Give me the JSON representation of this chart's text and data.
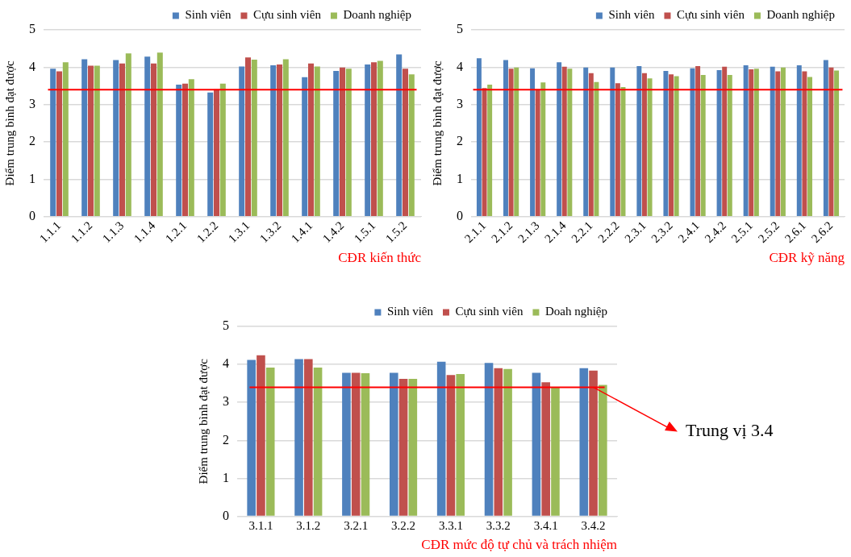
{
  "chart_data": [
    {
      "type": "bar",
      "xlabel": "CĐR kiến thức",
      "ylabel": "Điểm trung bình đạt được",
      "categories": [
        "1.1.1",
        "1.1.2",
        "1.1.3",
        "1.1.4",
        "1.2.1",
        "1.2.2",
        "1.3.1",
        "1.3.2",
        "1.4.1",
        "1.4.2",
        "1.5.1",
        "1.5.2"
      ],
      "series": [
        {
          "name": "Sinh viên",
          "color": "#4f81bd",
          "values": [
            3.96,
            4.21,
            4.19,
            4.28,
            3.53,
            3.32,
            4.02,
            4.05,
            3.73,
            3.9,
            4.07,
            4.34
          ]
        },
        {
          "name": "Cựu sinh viên",
          "color": "#c0504d",
          "values": [
            3.89,
            4.04,
            4.1,
            4.1,
            3.56,
            3.41,
            4.26,
            4.07,
            4.1,
            3.99,
            4.13,
            3.96
          ]
        },
        {
          "name": "Doanh nghiệp",
          "color": "#9bbb59",
          "values": [
            4.13,
            4.04,
            4.37,
            4.39,
            3.68,
            3.56,
            4.2,
            4.21,
            4.02,
            3.96,
            4.17,
            3.81
          ]
        }
      ],
      "ylim": [
        0,
        5
      ],
      "yticks": [
        0,
        1,
        2,
        3,
        4,
        5
      ],
      "grid": "y",
      "legend": "top right",
      "ref_lines": [
        {
          "axis": "y",
          "value": 3.4,
          "color": "#ff0000"
        }
      ]
    },
    {
      "type": "bar",
      "xlabel": "CĐR kỹ năng",
      "ylabel": "Điểm trung bình đạt được",
      "categories": [
        "2.1.1",
        "2.1.2",
        "2.1.3",
        "2.1.4",
        "2.2.1",
        "2.2.2",
        "2.3.1",
        "2.3.2",
        "2.4.1",
        "2.4.2",
        "2.5.1",
        "2.5.2",
        "2.6.1",
        "2.6.2"
      ],
      "series": [
        {
          "name": "Sinh viên",
          "color": "#4f81bd",
          "values": [
            4.24,
            4.19,
            3.97,
            4.13,
            3.99,
            3.99,
            4.03,
            3.9,
            3.97,
            3.92,
            4.05,
            4.01,
            4.05,
            4.19
          ]
        },
        {
          "name": "Cựu sinh viên",
          "color": "#c0504d",
          "values": [
            3.44,
            3.96,
            3.41,
            4.01,
            3.84,
            3.57,
            3.84,
            3.81,
            4.03,
            4.01,
            3.94,
            3.89,
            3.89,
            3.99
          ]
        },
        {
          "name": "Doanh nghiệp",
          "color": "#9bbb59",
          "values": [
            3.53,
            3.99,
            3.59,
            3.96,
            3.6,
            3.47,
            3.7,
            3.76,
            3.79,
            3.79,
            3.96,
            3.99,
            3.74,
            3.91
          ]
        }
      ],
      "ylim": [
        0,
        5
      ],
      "yticks": [
        0,
        1,
        2,
        3,
        4,
        5
      ],
      "grid": "y",
      "legend": "top right",
      "ref_lines": [
        {
          "axis": "y",
          "value": 3.4,
          "color": "#ff0000"
        }
      ]
    },
    {
      "type": "bar",
      "xlabel": "CĐR mức độ tự chủ và trách nhiệm",
      "ylabel": "Điểm trung bình đạt được",
      "categories": [
        "3.1.1",
        "3.1.2",
        "3.2.1",
        "3.2.2",
        "3.3.1",
        "3.3.2",
        "3.4.1",
        "3.4.2"
      ],
      "series": [
        {
          "name": "Sinh viên",
          "color": "#4f81bd",
          "values": [
            4.12,
            4.14,
            3.78,
            3.78,
            4.07,
            4.04,
            3.78,
            3.9
          ]
        },
        {
          "name": "Cựu sinh viên",
          "color": "#c0504d",
          "values": [
            4.24,
            4.14,
            3.78,
            3.62,
            3.72,
            3.9,
            3.53,
            3.84
          ]
        },
        {
          "name": "Doah nghiệp",
          "color": "#9bbb59",
          "values": [
            3.92,
            3.92,
            3.77,
            3.62,
            3.75,
            3.88,
            3.41,
            3.46
          ]
        }
      ],
      "ylim": [
        0,
        5
      ],
      "yticks": [
        0,
        1,
        2,
        3,
        4,
        5
      ],
      "grid": "y",
      "legend": "top right",
      "ref_lines": [
        {
          "axis": "y",
          "value": 3.4,
          "color": "#ff0000",
          "label": "Trung vị 3.4"
        }
      ]
    }
  ]
}
